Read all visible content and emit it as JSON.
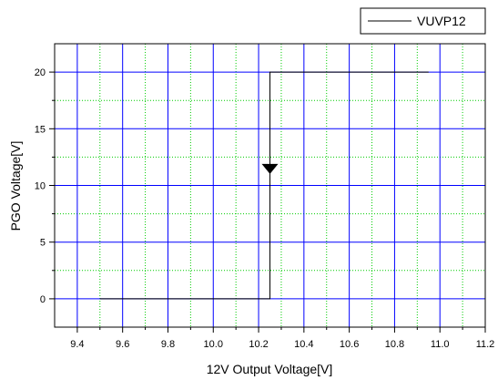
{
  "chart_data": {
    "type": "line",
    "title": "",
    "xlabel": "12V Output Voltage[V]",
    "ylabel": "PGO Voltage[V]",
    "xlim": [
      9.3,
      11.2
    ],
    "ylim": [
      -2.5,
      22.5
    ],
    "x_ticks": [
      9.4,
      9.6,
      9.8,
      10.0,
      10.2,
      10.4,
      10.6,
      10.8,
      11.0,
      11.2
    ],
    "x_tick_labels": [
      "9.4",
      "9.6",
      "9.8",
      "10.0",
      "10.2",
      "10.4",
      "10.6",
      "10.8",
      "11.0",
      "11.2"
    ],
    "y_ticks": [
      0,
      5,
      10,
      15,
      20
    ],
    "y_tick_labels": [
      "0",
      "5",
      "10",
      "15",
      "20"
    ],
    "grid": true,
    "minor_grid": true,
    "legend_position": "top-right",
    "series": [
      {
        "name": "VUVP12",
        "color": "#000000",
        "x": [
          9.5,
          10.25,
          10.25,
          10.95
        ],
        "y": [
          0,
          0,
          20,
          20
        ]
      }
    ],
    "annotations": [
      {
        "type": "arrow-down-marker",
        "x": 10.25,
        "y": 11.5,
        "color": "#000000"
      }
    ],
    "colors": {
      "major_grid": "#0000ff",
      "minor_grid": "#00cc00",
      "frame": "#000000"
    }
  }
}
